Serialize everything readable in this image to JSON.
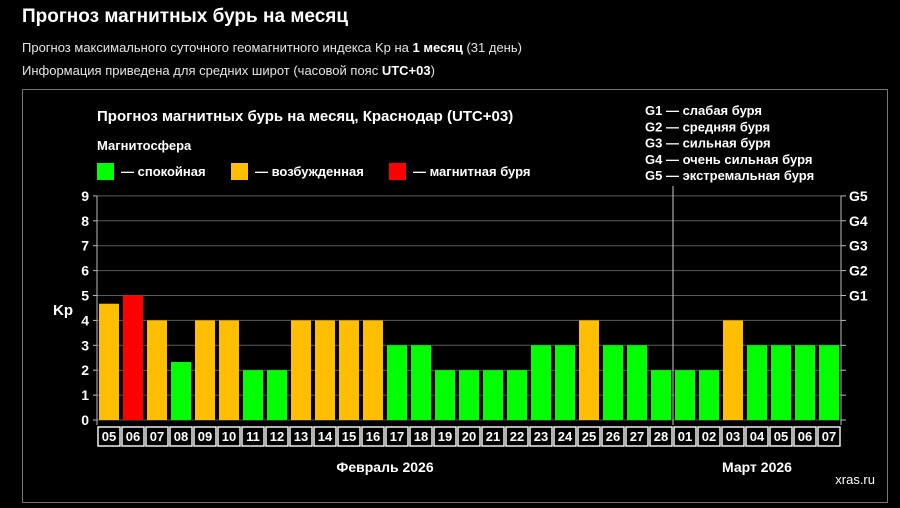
{
  "page": {
    "title": "Прогноз магнитных бурь на месяц",
    "subtitle1": {
      "prefix": "Прогноз максимального суточного геомагнитного индекса Kp на ",
      "bold": "1 месяц",
      "suffix": " (31 день)"
    },
    "subtitle2": {
      "prefix": "Информация приведена для средних широт (часовой пояс ",
      "bold": "UTC+03",
      "suffix": ")"
    },
    "watermark": "xras.ru"
  },
  "chart_data": {
    "type": "bar",
    "title": "Прогноз магнитных бурь на месяц, Краснодар (UTC+03)",
    "legend_title": "Магнитосфера",
    "legend": [
      {
        "label": "— спокойная",
        "color": "#00ff00"
      },
      {
        "label": "— возбужденная",
        "color": "#ffbf00"
      },
      {
        "label": "— магнитная буря",
        "color": "#ff0000"
      }
    ],
    "storm_scale": [
      "G1 — слабая буря",
      "G2 — средняя буря",
      "G3 — сильная буря",
      "G4 — очень сильная буря",
      "G5 — экстремальная буря"
    ],
    "ylabel": "Kp",
    "ylim": [
      0,
      9
    ],
    "yticks": [
      "0",
      "1",
      "2",
      "3",
      "4",
      "5",
      "6",
      "7",
      "8",
      "9"
    ],
    "right_ticks": [
      {
        "kp": 5,
        "label": "G1"
      },
      {
        "kp": 6,
        "label": "G2"
      },
      {
        "kp": 7,
        "label": "G3"
      },
      {
        "kp": 8,
        "label": "G4"
      },
      {
        "kp": 9,
        "label": "G5"
      }
    ],
    "grid": true,
    "categories": [
      "05",
      "06",
      "07",
      "08",
      "09",
      "10",
      "11",
      "12",
      "13",
      "14",
      "15",
      "16",
      "17",
      "18",
      "19",
      "20",
      "21",
      "22",
      "23",
      "24",
      "25",
      "26",
      "27",
      "28",
      "01",
      "02",
      "03",
      "04",
      "05",
      "06",
      "07"
    ],
    "values": [
      4.67,
      5,
      4,
      2.33,
      4,
      4,
      2,
      2,
      4,
      4,
      4,
      4,
      3,
      3,
      2,
      2,
      2,
      2,
      3,
      3,
      4,
      3,
      3,
      2,
      2,
      2,
      4,
      3,
      3,
      3,
      3
    ],
    "months": [
      {
        "label": "Февраль 2026",
        "start": 0,
        "end": 23
      },
      {
        "label": "Март 2026",
        "start": 24,
        "end": 30
      }
    ]
  }
}
